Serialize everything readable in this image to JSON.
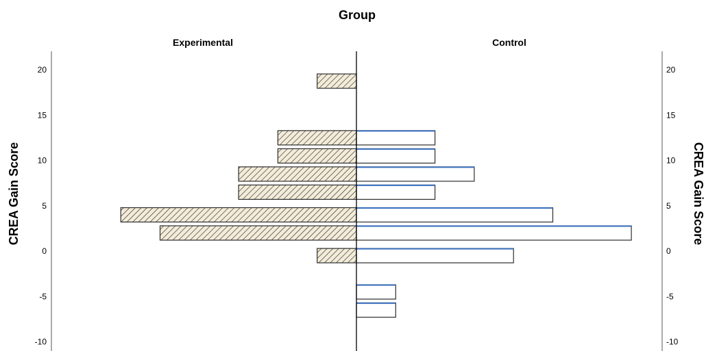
{
  "chart_data": {
    "type": "bar",
    "orientation": "horizontal",
    "layout": "population-pyramid",
    "title": "Group",
    "ylabel": "CREA Gain Score",
    "xlabel": "",
    "ylim": [
      -10,
      21
    ],
    "yticks": [
      20,
      15,
      10,
      5,
      0,
      -5,
      -10
    ],
    "grid": false,
    "legend": "none",
    "bin_centers": [
      18.75,
      12.5,
      10.5,
      8.5,
      6.5,
      4.0,
      2.0,
      -0.5,
      -4.5,
      -6.5
    ],
    "series": [
      {
        "name": "Experimental",
        "side": "left",
        "fill": "hatched",
        "values": [
          1,
          2,
          2,
          3,
          3,
          6,
          5,
          1,
          0,
          0
        ]
      },
      {
        "name": "Control",
        "side": "right",
        "fill": "#ffffff",
        "values": [
          0,
          2,
          2,
          3,
          2,
          5,
          7,
          4,
          1,
          1
        ]
      }
    ],
    "colors": {
      "bar_outline": "#2d2d2d",
      "hatch_bg": "#f3ecd9",
      "hatch_line": "#2a2a2a",
      "control_fill": "#ffffff",
      "control_edge": "#3a70c0",
      "axis": "#000000"
    }
  }
}
